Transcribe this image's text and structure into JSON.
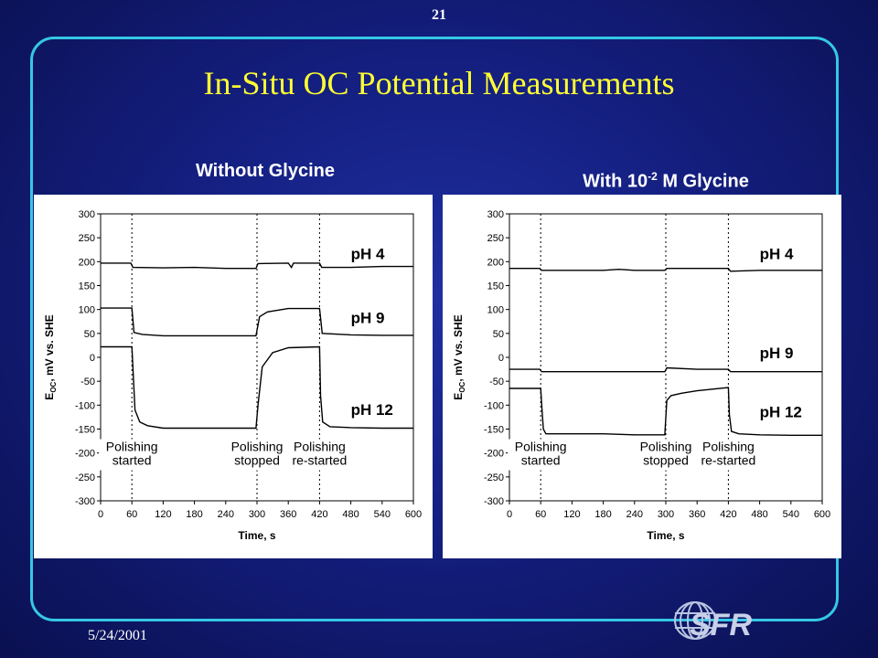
{
  "slide": {
    "number": "21",
    "title": "In-Situ OC Potential Measurements",
    "date": "5/24/2001",
    "logo_text": "SFR",
    "colors": {
      "background": "#141f80",
      "frame": "#35c8e6",
      "title": "#ffff33",
      "text": "#ffffff"
    }
  },
  "panels": {
    "left_heading": "Without Glycine",
    "right_heading_pre": "With 10",
    "right_heading_sup": "-2",
    "right_heading_post": " M Glycine"
  },
  "chart_data": [
    {
      "type": "line",
      "xlabel": "Time, s",
      "ylabel_main": "E",
      "ylabel_sub": "OC",
      "ylabel_rest": ", mV vs. SHE",
      "xlim": [
        0,
        600
      ],
      "ylim": [
        -300,
        300
      ],
      "xticks": [
        0,
        60,
        120,
        180,
        240,
        300,
        360,
        420,
        480,
        540,
        600
      ],
      "yticks": [
        300,
        250,
        200,
        150,
        100,
        50,
        0,
        -50,
        -100,
        -150,
        -200,
        -250,
        -300
      ],
      "grid": false,
      "event_lines": [
        60,
        300,
        420
      ],
      "annotations": [
        {
          "lines": [
            "Polishing",
            "started"
          ],
          "x": 60
        },
        {
          "lines": [
            "Polishing",
            "stopped"
          ],
          "x": 300
        },
        {
          "lines": [
            "Polishing",
            "re-started"
          ],
          "x": 420
        }
      ],
      "series": [
        {
          "name": "pH 4",
          "label_x": 480,
          "label_y": 205,
          "x": [
            0,
            58,
            62,
            120,
            180,
            240,
            298,
            302,
            360,
            366,
            370,
            420,
            424,
            480,
            540,
            600
          ],
          "y": [
            197,
            197,
            188,
            187,
            188,
            186,
            186,
            196,
            197,
            188,
            197,
            197,
            188,
            188,
            190,
            190
          ]
        },
        {
          "name": "pH 9",
          "label_x": 480,
          "label_y": 72,
          "x": [
            0,
            60,
            64,
            80,
            120,
            180,
            240,
            298,
            305,
            320,
            360,
            420,
            425,
            480,
            540,
            600
          ],
          "y": [
            103,
            103,
            52,
            48,
            45,
            45,
            45,
            45,
            85,
            95,
            102,
            102,
            50,
            47,
            46,
            46
          ]
        },
        {
          "name": "pH 12",
          "label_x": 480,
          "label_y": -120,
          "x": [
            0,
            60,
            62,
            66,
            75,
            90,
            120,
            180,
            240,
            298,
            302,
            310,
            330,
            360,
            420,
            422,
            426,
            440,
            480,
            540,
            600
          ],
          "y": [
            22,
            22,
            -20,
            -110,
            -135,
            -143,
            -148,
            -148,
            -148,
            -148,
            -100,
            -20,
            10,
            20,
            22,
            -80,
            -135,
            -145,
            -147,
            -148,
            -148
          ]
        }
      ]
    },
    {
      "type": "line",
      "xlabel": "Time, s",
      "ylabel_main": "E",
      "ylabel_sub": "OC",
      "ylabel_rest": ", mV vs. SHE",
      "xlim": [
        0,
        600
      ],
      "ylim": [
        -300,
        300
      ],
      "xticks": [
        0,
        60,
        120,
        180,
        240,
        300,
        360,
        420,
        480,
        540,
        600
      ],
      "yticks": [
        300,
        250,
        200,
        150,
        100,
        50,
        0,
        -50,
        -100,
        -150,
        -200,
        -250,
        -300
      ],
      "grid": false,
      "event_lines": [
        60,
        300,
        420
      ],
      "annotations": [
        {
          "lines": [
            "Polishing",
            "started"
          ],
          "x": 60
        },
        {
          "lines": [
            "Polishing",
            "stopped"
          ],
          "x": 300
        },
        {
          "lines": [
            "Polishing",
            "re-started"
          ],
          "x": 420
        }
      ],
      "series": [
        {
          "name": "pH 4",
          "label_x": 480,
          "label_y": 205,
          "x": [
            0,
            58,
            62,
            120,
            180,
            210,
            240,
            298,
            302,
            360,
            420,
            424,
            480,
            540,
            600
          ],
          "y": [
            186,
            186,
            182,
            182,
            182,
            184,
            182,
            182,
            186,
            186,
            186,
            180,
            182,
            182,
            182
          ]
        },
        {
          "name": "pH 9",
          "label_x": 480,
          "label_y": -2,
          "x": [
            0,
            58,
            62,
            120,
            180,
            240,
            298,
            302,
            360,
            420,
            424,
            480,
            540,
            600
          ],
          "y": [
            -25,
            -25,
            -30,
            -30,
            -30,
            -30,
            -30,
            -22,
            -25,
            -25,
            -30,
            -30,
            -30,
            -30
          ]
        },
        {
          "name": "pH 12",
          "label_x": 480,
          "label_y": -125,
          "x": [
            0,
            60,
            62,
            65,
            70,
            90,
            120,
            180,
            240,
            298,
            302,
            310,
            330,
            360,
            420,
            422,
            426,
            440,
            480,
            540,
            600
          ],
          "y": [
            -65,
            -65,
            -100,
            -150,
            -160,
            -160,
            -160,
            -160,
            -162,
            -162,
            -90,
            -80,
            -75,
            -70,
            -63,
            -120,
            -155,
            -160,
            -162,
            -163,
            -163
          ]
        }
      ]
    }
  ]
}
